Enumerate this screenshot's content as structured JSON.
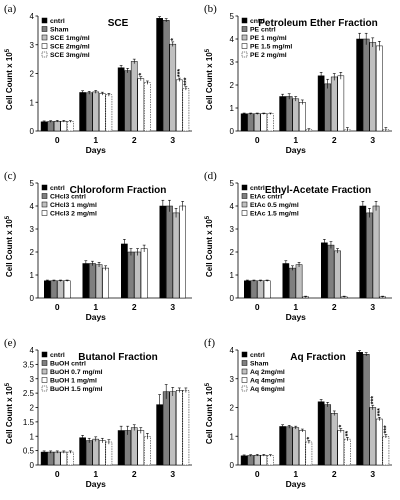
{
  "chart_data": [
    {
      "type": "bar",
      "panel_label": "(a)",
      "title": "SCE",
      "xlabel": "Days",
      "ylabel": "Cell Count x 10",
      "ylabel_sup": "5",
      "ylim": [
        0,
        4
      ],
      "yticks": [
        0,
        1,
        2,
        3,
        4
      ],
      "categories": [
        "0",
        "1",
        "2",
        "3"
      ],
      "legend_position": "top-left",
      "series": [
        {
          "name": "cntrl",
          "fill": "#000000",
          "values": [
            0.32,
            1.34,
            2.2,
            3.92
          ],
          "errors": [
            0.03,
            0.06,
            0.08,
            0.06
          ]
        },
        {
          "name": "Sham",
          "fill": "#7f7f7f",
          "values": [
            0.33,
            1.33,
            2.1,
            3.85
          ],
          "errors": [
            0.03,
            0.05,
            0.08,
            0.06
          ]
        },
        {
          "name": "SCE 1mg/ml",
          "fill": "#c0c0c0",
          "values": [
            0.34,
            1.36,
            2.42,
            3.02
          ],
          "errors": [
            0.03,
            0.05,
            0.08,
            0.08
          ]
        },
        {
          "name": "SCE 2mg/ml",
          "fill": "#ffffff",
          "values": [
            0.34,
            1.3,
            1.82,
            1.78
          ],
          "errors": [
            0.03,
            0.05,
            0.07,
            0.06
          ]
        },
        {
          "name": "SCE 3mg/ml",
          "fill": "#ffffff",
          "dashed": true,
          "values": [
            0.33,
            1.26,
            1.68,
            1.48
          ],
          "errors": [
            0.03,
            0.05,
            0.06,
            0.06
          ]
        }
      ],
      "annotations": [
        {
          "text": "*",
          "category": 2,
          "series": 3
        },
        {
          "text": "*",
          "category": 3,
          "series": 2
        },
        {
          "text": "***",
          "category": 3,
          "series": 3
        },
        {
          "text": "***",
          "category": 3,
          "series": 4
        }
      ]
    },
    {
      "type": "bar",
      "panel_label": "(b)",
      "title": "Petroleum Ether Fraction",
      "xlabel": "Days",
      "ylabel": "Cell Count x 10",
      "ylabel_sup": "5",
      "ylim": [
        0,
        5
      ],
      "yticks": [
        0,
        1,
        2,
        3,
        4,
        5
      ],
      "categories": [
        "0",
        "1",
        "2",
        "3"
      ],
      "legend_position": "top-left",
      "series": [
        {
          "name": "cntrl",
          "fill": "#000000",
          "values": [
            0.75,
            1.5,
            2.4,
            4.0
          ],
          "errors": [
            0.03,
            0.1,
            0.15,
            0.25
          ]
        },
        {
          "name": "PE cntrl",
          "fill": "#7f7f7f",
          "values": [
            0.75,
            1.5,
            2.05,
            4.0
          ],
          "errors": [
            0.03,
            0.12,
            0.2,
            0.25
          ]
        },
        {
          "name": "PE 1 mg/ml",
          "fill": "#c0c0c0",
          "values": [
            0.75,
            1.4,
            2.35,
            3.85
          ],
          "errors": [
            0.03,
            0.1,
            0.15,
            0.2
          ]
        },
        {
          "name": "PE 1.5 mg/ml",
          "fill": "#ffffff",
          "values": [
            0.75,
            1.25,
            2.4,
            3.7
          ],
          "errors": [
            0.03,
            0.1,
            0.15,
            0.2
          ]
        },
        {
          "name": "PE 2 mg/ml",
          "fill": "#ffffff",
          "dashed": true,
          "values": [
            0.75,
            0.05,
            0.05,
            0.05
          ],
          "errors": [
            0.03,
            0.05,
            0.1,
            0.1
          ]
        }
      ],
      "annotations": []
    },
    {
      "type": "bar",
      "panel_label": "(c)",
      "title": "Chloroform Fraction",
      "xlabel": "Days",
      "ylabel": "Cell Count x 10",
      "ylabel_sup": "5",
      "ylim": [
        0,
        5
      ],
      "yticks": [
        0,
        1,
        2,
        3,
        4,
        5
      ],
      "categories": [
        "0",
        "1",
        "2",
        "3"
      ],
      "legend_position": "top-left",
      "series": [
        {
          "name": "cntrl",
          "fill": "#000000",
          "values": [
            0.75,
            1.5,
            2.35,
            4.0
          ],
          "errors": [
            0.03,
            0.12,
            0.2,
            0.25
          ]
        },
        {
          "name": "CHcl3 cntrl",
          "fill": "#7f7f7f",
          "values": [
            0.75,
            1.5,
            2.0,
            4.0
          ],
          "errors": [
            0.03,
            0.1,
            0.15,
            0.25
          ]
        },
        {
          "name": "CHcl3 1 mg/ml",
          "fill": "#c0c0c0",
          "values": [
            0.75,
            1.45,
            2.0,
            3.7
          ],
          "errors": [
            0.03,
            0.1,
            0.15,
            0.2
          ]
        },
        {
          "name": "CHcl3 2 mg/ml",
          "fill": "#ffffff",
          "values": [
            0.75,
            1.3,
            2.15,
            4.0
          ],
          "errors": [
            0.03,
            0.1,
            0.15,
            0.2
          ]
        }
      ],
      "annotations": []
    },
    {
      "type": "bar",
      "panel_label": "(d)",
      "title": "Ethyl-Acetate Fraction",
      "xlabel": "Days",
      "ylabel": "Cell Count x 10",
      "ylabel_sup": "5",
      "ylim": [
        0,
        5
      ],
      "yticks": [
        0,
        1,
        2,
        3,
        4,
        5
      ],
      "categories": [
        "0",
        "1",
        "2",
        "3"
      ],
      "legend_position": "top-left",
      "series": [
        {
          "name": "cntrl",
          "fill": "#000000",
          "values": [
            0.75,
            1.5,
            2.4,
            4.0
          ],
          "errors": [
            0.03,
            0.12,
            0.15,
            0.2
          ]
        },
        {
          "name": "EtAc cntrl",
          "fill": "#7f7f7f",
          "values": [
            0.75,
            1.3,
            2.3,
            3.7
          ],
          "errors": [
            0.03,
            0.1,
            0.15,
            0.2
          ]
        },
        {
          "name": "EtAc 0.5 mg/ml",
          "fill": "#c0c0c0",
          "values": [
            0.75,
            1.45,
            2.05,
            4.0
          ],
          "errors": [
            0.03,
            0.1,
            0.1,
            0.2
          ]
        },
        {
          "name": "EtAc 1.5 mg/ml",
          "fill": "#ffffff",
          "values": [
            0.75,
            0.05,
            0.05,
            0.05
          ],
          "errors": [
            0.03,
            0.03,
            0.03,
            0.03
          ]
        }
      ],
      "annotations": []
    },
    {
      "type": "bar",
      "panel_label": "(e)",
      "title": "Butanol Fraction",
      "xlabel": "Days",
      "ylabel": "Cell Count x 10",
      "ylabel_sup": "5",
      "ylim": [
        0,
        4
      ],
      "yticks": [
        0,
        0.5,
        1,
        1.5,
        2,
        2.5,
        3,
        3.5,
        4
      ],
      "categories": [
        "0",
        "1",
        "2",
        "3"
      ],
      "legend_position": "top-left",
      "series": [
        {
          "name": "cntrl",
          "fill": "#000000",
          "values": [
            0.45,
            0.95,
            1.2,
            2.1
          ],
          "errors": [
            0.04,
            0.08,
            0.15,
            0.35
          ]
        },
        {
          "name": "BuOH cntrl",
          "fill": "#7f7f7f",
          "values": [
            0.45,
            0.85,
            1.2,
            2.55
          ],
          "errors": [
            0.04,
            0.08,
            0.15,
            0.25
          ]
        },
        {
          "name": "BuOH 0.7 mg/ml",
          "fill": "#c0c0c0",
          "values": [
            0.45,
            0.9,
            1.3,
            2.55
          ],
          "errors": [
            0.04,
            0.08,
            0.1,
            0.15
          ]
        },
        {
          "name": "BuOH 1 mg/ml",
          "fill": "#ffffff",
          "values": [
            0.45,
            0.85,
            1.2,
            2.6
          ],
          "errors": [
            0.04,
            0.08,
            0.1,
            0.08
          ]
        },
        {
          "name": "BuOH 1.5 mg/ml",
          "fill": "#ffffff",
          "dashed": true,
          "values": [
            0.45,
            0.8,
            1.0,
            2.6
          ],
          "errors": [
            0.04,
            0.08,
            0.1,
            0.08
          ]
        }
      ],
      "annotations": []
    },
    {
      "type": "bar",
      "panel_label": "(f)",
      "title": "Aq Fraction",
      "xlabel": "Days",
      "ylabel": "Cell Count x 10",
      "ylabel_sup": "5",
      "ylim": [
        0,
        4
      ],
      "yticks": [
        0,
        1,
        2,
        3,
        4
      ],
      "categories": [
        "0",
        "1",
        "2",
        "3"
      ],
      "legend_position": "top-left",
      "series": [
        {
          "name": "cntrl",
          "fill": "#000000",
          "values": [
            0.32,
            1.34,
            2.2,
            3.92
          ],
          "errors": [
            0.03,
            0.06,
            0.08,
            0.06
          ]
        },
        {
          "name": "Sham",
          "fill": "#7f7f7f",
          "values": [
            0.33,
            1.33,
            2.1,
            3.85
          ],
          "errors": [
            0.03,
            0.05,
            0.08,
            0.06
          ]
        },
        {
          "name": "Aq 2mg/ml",
          "fill": "#c0c0c0",
          "values": [
            0.34,
            1.3,
            1.8,
            2.0
          ],
          "errors": [
            0.03,
            0.05,
            0.08,
            0.08
          ]
        },
        {
          "name": "Aq 4mg/ml",
          "fill": "#ffffff",
          "values": [
            0.34,
            1.2,
            1.2,
            1.6
          ],
          "errors": [
            0.03,
            0.05,
            0.07,
            0.06
          ]
        },
        {
          "name": "Aq 6mg/ml",
          "fill": "#ffffff",
          "dashed": true,
          "values": [
            0.33,
            0.8,
            0.9,
            1.0
          ],
          "errors": [
            0.03,
            0.05,
            0.06,
            0.06
          ]
        }
      ],
      "annotations": [
        {
          "text": "*",
          "category": 1,
          "series": 4
        },
        {
          "text": "*",
          "category": 2,
          "series": 3
        },
        {
          "text": "**",
          "category": 2,
          "series": 4
        },
        {
          "text": "***",
          "category": 3,
          "series": 2
        },
        {
          "text": "***",
          "category": 3,
          "series": 3
        },
        {
          "text": "***",
          "category": 3,
          "series": 4
        }
      ]
    }
  ]
}
